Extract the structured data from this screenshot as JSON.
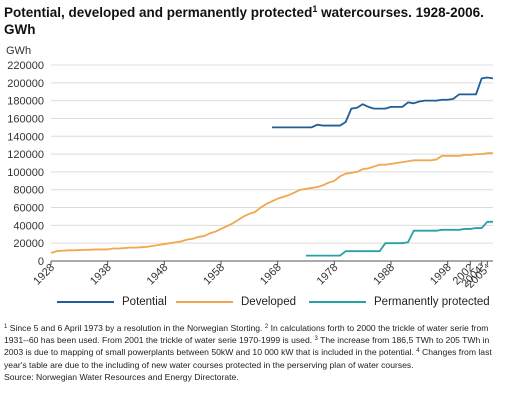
{
  "title": "Potential, developed and permanently protected",
  "title_sup": "1",
  "title_rest": " watercourses. 1928-2006.",
  "title_line2": "GWh",
  "colors": {
    "potential": "#1f5e96",
    "developed": "#f0a850",
    "protected": "#27a0a8",
    "grid": "#dcdcdc",
    "axis": "#555555"
  },
  "chart_data": {
    "type": "line",
    "title": "Potential, developed and permanently protected watercourses. 1928-2006.",
    "ylabel": "GWh",
    "xlabel": "",
    "ylim": [
      0,
      220000
    ],
    "yticks": [
      "0",
      "20000",
      "40000",
      "60000",
      "80000",
      "100000",
      "120000",
      "140000",
      "160000",
      "180000",
      "200000",
      "220000"
    ],
    "xtick_labels": [
      {
        "year": 1928,
        "label": "1928"
      },
      {
        "year": 1938,
        "label": "1938"
      },
      {
        "year": 1948,
        "label": "1948"
      },
      {
        "year": 1958,
        "label": "1958"
      },
      {
        "year": 1968,
        "label": "1968"
      },
      {
        "year": 1978,
        "label": "1978"
      },
      {
        "year": 1988,
        "label": "1988"
      },
      {
        "year": 1998,
        "label": "1998"
      },
      {
        "year": 2002,
        "label": "2002"
      },
      {
        "year": 2004,
        "label": "2004³"
      },
      {
        "year": 2005,
        "label": "2005⁴"
      }
    ],
    "grid": true,
    "legend_position": "bottom",
    "series": [
      {
        "name": "Potential",
        "color": "#1f5e96",
        "points": [
          [
            1967,
            150000
          ],
          [
            1968,
            150000
          ],
          [
            1969,
            150000
          ],
          [
            1970,
            150000
          ],
          [
            1971,
            150000
          ],
          [
            1972,
            150000
          ],
          [
            1973,
            150000
          ],
          [
            1974,
            150000
          ],
          [
            1975,
            153000
          ],
          [
            1976,
            152000
          ],
          [
            1977,
            152000
          ],
          [
            1978,
            152000
          ],
          [
            1979,
            152000
          ],
          [
            1980,
            156000
          ],
          [
            1981,
            171000
          ],
          [
            1982,
            172000
          ],
          [
            1983,
            176000
          ],
          [
            1984,
            173000
          ],
          [
            1985,
            171000
          ],
          [
            1986,
            171000
          ],
          [
            1987,
            171000
          ],
          [
            1988,
            173000
          ],
          [
            1989,
            173000
          ],
          [
            1990,
            173000
          ],
          [
            1991,
            178000
          ],
          [
            1992,
            177000
          ],
          [
            1993,
            179000
          ],
          [
            1994,
            180000
          ],
          [
            1995,
            180000
          ],
          [
            1996,
            180000
          ],
          [
            1997,
            181000
          ],
          [
            1998,
            181000
          ],
          [
            1999,
            182000
          ],
          [
            2000,
            187000
          ],
          [
            2001,
            187000
          ],
          [
            2002,
            187000
          ],
          [
            2003,
            187000
          ],
          [
            2004,
            205000
          ],
          [
            2005,
            206000
          ],
          [
            2006,
            205000
          ]
        ]
      },
      {
        "name": "Developed",
        "color": "#f0a850",
        "points": [
          [
            1928,
            9000
          ],
          [
            1929,
            11000
          ],
          [
            1930,
            11500
          ],
          [
            1931,
            12000
          ],
          [
            1932,
            12000
          ],
          [
            1933,
            12300
          ],
          [
            1934,
            12500
          ],
          [
            1935,
            12700
          ],
          [
            1936,
            13000
          ],
          [
            1937,
            13000
          ],
          [
            1938,
            13000
          ],
          [
            1939,
            14000
          ],
          [
            1940,
            14000
          ],
          [
            1941,
            14500
          ],
          [
            1942,
            15000
          ],
          [
            1943,
            15000
          ],
          [
            1944,
            15500
          ],
          [
            1945,
            16000
          ],
          [
            1946,
            17000
          ],
          [
            1947,
            18000
          ],
          [
            1948,
            19000
          ],
          [
            1949,
            20000
          ],
          [
            1950,
            21000
          ],
          [
            1951,
            22000
          ],
          [
            1952,
            24000
          ],
          [
            1953,
            25000
          ],
          [
            1954,
            27000
          ],
          [
            1955,
            28000
          ],
          [
            1956,
            31000
          ],
          [
            1957,
            33000
          ],
          [
            1958,
            36000
          ],
          [
            1959,
            39000
          ],
          [
            1960,
            42000
          ],
          [
            1961,
            46000
          ],
          [
            1962,
            50000
          ],
          [
            1963,
            53000
          ],
          [
            1964,
            55000
          ],
          [
            1965,
            60000
          ],
          [
            1966,
            64000
          ],
          [
            1967,
            67000
          ],
          [
            1968,
            70000
          ],
          [
            1969,
            72000
          ],
          [
            1970,
            74000
          ],
          [
            1971,
            77000
          ],
          [
            1972,
            80000
          ],
          [
            1973,
            81000
          ],
          [
            1974,
            82000
          ],
          [
            1975,
            83000
          ],
          [
            1976,
            85000
          ],
          [
            1977,
            88000
          ],
          [
            1978,
            90000
          ],
          [
            1979,
            95000
          ],
          [
            1980,
            98000
          ],
          [
            1981,
            99000
          ],
          [
            1982,
            100000
          ],
          [
            1983,
            103000
          ],
          [
            1984,
            104000
          ],
          [
            1985,
            106000
          ],
          [
            1986,
            108000
          ],
          [
            1987,
            108000
          ],
          [
            1988,
            109000
          ],
          [
            1989,
            110000
          ],
          [
            1990,
            111000
          ],
          [
            1991,
            112000
          ],
          [
            1992,
            113000
          ],
          [
            1993,
            113000
          ],
          [
            1994,
            113000
          ],
          [
            1995,
            113000
          ],
          [
            1996,
            114000
          ],
          [
            1997,
            118000
          ],
          [
            1998,
            118000
          ],
          [
            1999,
            118000
          ],
          [
            2000,
            118000
          ],
          [
            2001,
            119000
          ],
          [
            2002,
            119000
          ],
          [
            2003,
            120000
          ],
          [
            2004,
            120000
          ],
          [
            2005,
            121000
          ],
          [
            2006,
            121000
          ]
        ]
      },
      {
        "name": "Permanently protected",
        "color": "#27a0a8",
        "points": [
          [
            1973,
            6000
          ],
          [
            1974,
            6000
          ],
          [
            1975,
            6000
          ],
          [
            1976,
            6000
          ],
          [
            1977,
            6000
          ],
          [
            1978,
            6000
          ],
          [
            1979,
            6000
          ],
          [
            1980,
            11000
          ],
          [
            1981,
            11000
          ],
          [
            1982,
            11000
          ],
          [
            1983,
            11000
          ],
          [
            1984,
            11000
          ],
          [
            1985,
            11000
          ],
          [
            1986,
            11000
          ],
          [
            1987,
            20000
          ],
          [
            1988,
            20000
          ],
          [
            1989,
            20000
          ],
          [
            1990,
            20000
          ],
          [
            1991,
            21000
          ],
          [
            1992,
            34000
          ],
          [
            1993,
            34000
          ],
          [
            1994,
            34000
          ],
          [
            1995,
            34000
          ],
          [
            1996,
            34000
          ],
          [
            1997,
            35000
          ],
          [
            1998,
            35000
          ],
          [
            1999,
            35000
          ],
          [
            2000,
            35000
          ],
          [
            2001,
            36000
          ],
          [
            2002,
            36000
          ],
          [
            2003,
            37000
          ],
          [
            2004,
            37000
          ],
          [
            2005,
            44000
          ],
          [
            2006,
            44000
          ]
        ]
      }
    ]
  },
  "notes": {
    "n1_sup": "1",
    "n1": " Since 5 and 6 April 1973 by a resolution in the Norwegian Storting. ",
    "n2_sup": "2",
    "n2": " In calculations forth to 2000 the trickle of water serie from 1931--60 has been used. From 2001 the trickle of water serie 1970-1999 is used. ",
    "n3_sup": "3",
    "n3": " The increase from 186,5 TWh to 205 TWh in 2003 is due to mapping of small powerplants between 50kW and 10 000 kW that is included in the potential. ",
    "n4_sup": "4",
    "n4": " Changes from last year's table are due to the including of new water courses protected in the perserving plan of water courses.",
    "source": "Source: Norwegian Water Resources and Energy Directorate."
  }
}
